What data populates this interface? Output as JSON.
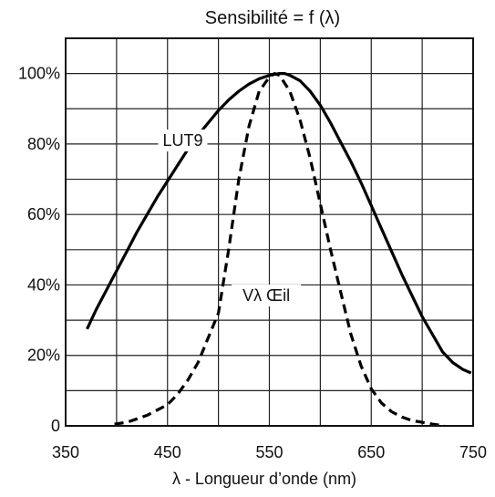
{
  "chart_data": {
    "type": "line",
    "title": "Sensibilité = f (λ)",
    "xlabel": "λ - Longueur d’onde (nm)",
    "ylabel": "",
    "xlim": [
      350,
      750
    ],
    "ylim": [
      0,
      110
    ],
    "grid": true,
    "legend": "none",
    "x_ticks": [
      350,
      450,
      550,
      650,
      750
    ],
    "x_tick_labels": [
      "350",
      "450",
      "550",
      "650",
      "750"
    ],
    "y_ticks": [
      0,
      20,
      40,
      60,
      80,
      100
    ],
    "y_tick_labels": [
      "0",
      "20%",
      "40%",
      "60%",
      "80%",
      "100%"
    ],
    "x_grid": [
      350,
      400,
      450,
      500,
      550,
      600,
      650,
      700,
      750
    ],
    "y_grid": [
      0,
      10,
      20,
      30,
      40,
      50,
      60,
      70,
      80,
      90,
      100,
      110
    ],
    "series": [
      {
        "name": "LUT9",
        "style": "solid",
        "x": [
          371,
          380,
          390,
          400,
          410,
          420,
          430,
          440,
          450,
          460,
          470,
          480,
          490,
          500,
          510,
          520,
          530,
          540,
          550,
          560,
          565,
          570,
          580,
          590,
          600,
          610,
          620,
          630,
          640,
          650,
          660,
          670,
          680,
          690,
          700,
          710,
          720,
          730,
          740,
          748
        ],
        "values": [
          27.5,
          33,
          38.5,
          44,
          49.5,
          55,
          60,
          65,
          69.5,
          74,
          78.5,
          82.5,
          86,
          89.5,
          92.5,
          95,
          97,
          98.5,
          99.5,
          100,
          100,
          99.5,
          98,
          95,
          91,
          86,
          80.5,
          75,
          69,
          62.5,
          56,
          49.5,
          43,
          37,
          31,
          26,
          21,
          18,
          16,
          15
        ]
      },
      {
        "name": "Vλ Œil",
        "style": "dashed",
        "x": [
          398,
          410,
          420,
          430,
          440,
          450,
          460,
          470,
          480,
          490,
          500,
          510,
          520,
          530,
          540,
          550,
          555,
          560,
          570,
          580,
          590,
          600,
          610,
          620,
          630,
          640,
          650,
          660,
          670,
          680,
          690,
          700,
          710,
          722
        ],
        "values": [
          0.5,
          1,
          2,
          3,
          4.5,
          6,
          9,
          13,
          18,
          25,
          32,
          50,
          70,
          85,
          95,
          99,
          100,
          99.5,
          95,
          87,
          76,
          63,
          50,
          38,
          26,
          17,
          10.5,
          6.5,
          4,
          2.5,
          1.5,
          1,
          0.5,
          0
        ]
      }
    ],
    "annotations": [
      {
        "text": "LUT9",
        "x": 465,
        "y": 81
      },
      {
        "text": "Vλ Œil",
        "x": 547,
        "y": 37
      }
    ]
  }
}
